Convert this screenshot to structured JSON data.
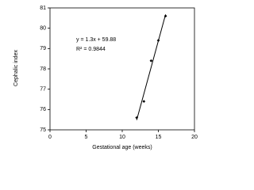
{
  "chart_data": {
    "type": "scatter",
    "x_label": "Gestational age (weeks)",
    "y_label": "Cephalic index",
    "x": [
      12,
      13,
      14,
      15,
      16
    ],
    "values": [
      75.6,
      76.4,
      78.4,
      79.4,
      80.6
    ],
    "color": "#000000",
    "trendline": {
      "slope": 1.3,
      "intercept": 59.88
    },
    "annotations": [
      "y = 1.3x + 59.88",
      "R² = 0.9844"
    ],
    "xlim": [
      0,
      20
    ],
    "xticks": [
      0,
      5,
      10,
      15,
      20
    ],
    "ylim": [
      75,
      81
    ],
    "yticks": [
      75,
      76,
      77,
      78,
      79,
      80,
      81
    ],
    "grid": false
  }
}
